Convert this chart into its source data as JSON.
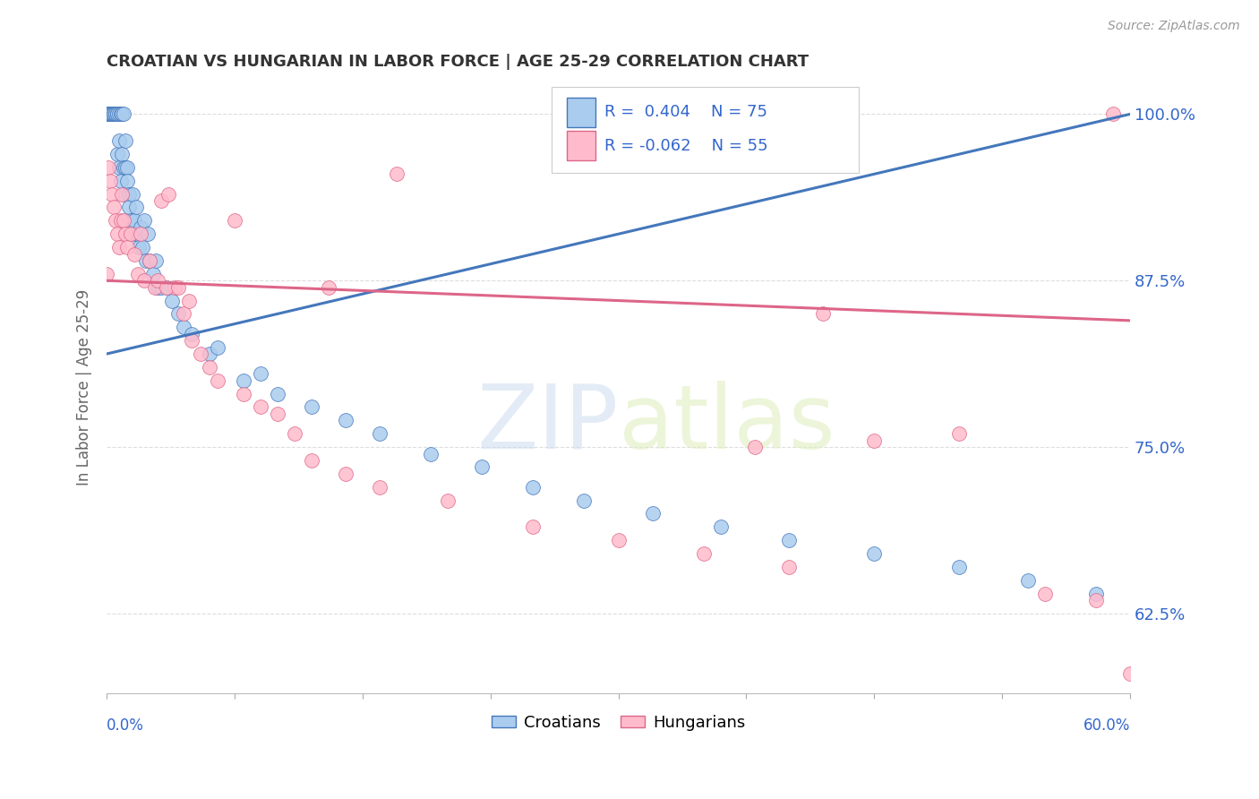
{
  "title": "CROATIAN VS HUNGARIAN IN LABOR FORCE | AGE 25-29 CORRELATION CHART",
  "source": "Source: ZipAtlas.com",
  "ylabel": "In Labor Force | Age 25-29",
  "xmin": 0.0,
  "xmax": 0.6,
  "ymin": 0.565,
  "ymax": 1.025,
  "croatian_color": "#aaccee",
  "hungarian_color": "#ffbbcc",
  "trendline_croatian_color": "#4477bb",
  "trendline_hungarian_color": "#dd6688",
  "legend_R_croatian": "R =  0.404",
  "legend_N_croatian": "N = 75",
  "legend_R_hungarian": "R = -0.062",
  "legend_N_hungarian": "N = 55",
  "watermark_zip": "ZIP",
  "watermark_atlas": "atlas",
  "background_color": "#ffffff",
  "grid_color": "#dddddd",
  "title_color": "#333333",
  "tick_label_color": "#3366cc",
  "ytick_vals": [
    0.625,
    0.75,
    0.875,
    1.0
  ],
  "ytick_labels": [
    "62.5%",
    "75.0%",
    "87.5%",
    "100.0%"
  ],
  "cr_trendline_x0": 0.0,
  "cr_trendline_y0": 0.82,
  "cr_trendline_x1": 0.6,
  "cr_trendline_y1": 1.0,
  "hu_trendline_x0": 0.0,
  "hu_trendline_y0": 0.875,
  "hu_trendline_x1": 0.6,
  "hu_trendline_y1": 0.845
}
